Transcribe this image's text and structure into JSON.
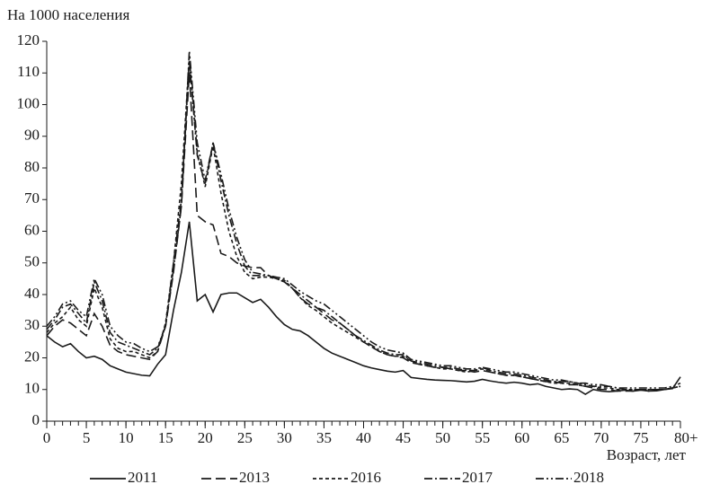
{
  "chart_data": {
    "type": "line",
    "y_label": "На 1000 населения",
    "x_label": "Возраст, лет",
    "x": [
      0,
      1,
      2,
      3,
      4,
      5,
      6,
      7,
      8,
      9,
      10,
      11,
      12,
      13,
      14,
      15,
      16,
      17,
      18,
      19,
      20,
      21,
      22,
      23,
      24,
      25,
      26,
      27,
      28,
      29,
      30,
      31,
      32,
      33,
      34,
      35,
      36,
      37,
      38,
      39,
      40,
      41,
      42,
      43,
      44,
      45,
      46,
      47,
      48,
      49,
      50,
      51,
      52,
      53,
      54,
      55,
      56,
      57,
      58,
      59,
      60,
      61,
      62,
      63,
      64,
      65,
      66,
      67,
      68,
      69,
      70,
      71,
      72,
      73,
      74,
      75,
      76,
      77,
      78,
      79,
      80
    ],
    "xlim": [
      0,
      80
    ],
    "xticks": [
      0,
      5,
      10,
      15,
      20,
      25,
      30,
      35,
      40,
      45,
      50,
      55,
      60,
      65,
      70,
      75,
      {
        "value": 80,
        "label": "80+"
      }
    ],
    "ylim": [
      0,
      120
    ],
    "yticks": [
      0,
      10,
      20,
      30,
      40,
      50,
      60,
      70,
      80,
      90,
      100,
      110,
      120
    ],
    "legend": "bottom",
    "series": [
      {
        "name": "2011",
        "color": "#1a1a1a",
        "style": "solid",
        "values": [
          27,
          25,
          23.5,
          24.5,
          22,
          20,
          20.5,
          19.5,
          17.5,
          16.5,
          15.5,
          15,
          14.5,
          14.3,
          18,
          21,
          35,
          47,
          63,
          38,
          40,
          34.5,
          40,
          40.5,
          40.5,
          39,
          37.5,
          38.5,
          36,
          33,
          30.5,
          29,
          28.5,
          27,
          25,
          23,
          21.5,
          20.5,
          19.5,
          18.5,
          17.5,
          16.8,
          16.3,
          15.8,
          15.5,
          16,
          13.8,
          13.5,
          13.2,
          13,
          12.9,
          12.8,
          12.6,
          12.4,
          12.6,
          13.2,
          12.7,
          12.3,
          12,
          12.3,
          12,
          11.5,
          11.8,
          11,
          10.5,
          10,
          10.2,
          10,
          8.5,
          10,
          9.5,
          9.3,
          9.5,
          9.8,
          9.5,
          9.8,
          9.5,
          9.6,
          10,
          10.3,
          14
        ]
      },
      {
        "name": "2013",
        "color": "#1a1a1a",
        "style": "dashed",
        "values": [
          27,
          30,
          32,
          31,
          29,
          27,
          34,
          30,
          24,
          22,
          21,
          20.5,
          20,
          19.5,
          22,
          30,
          47,
          68,
          110,
          65,
          63,
          62,
          53,
          52,
          50,
          49,
          48.5,
          48.5,
          46,
          45,
          44,
          42,
          39,
          37,
          36,
          34,
          32,
          31,
          29,
          27,
          25,
          23.5,
          22,
          21,
          20.5,
          20,
          18.5,
          18,
          17.5,
          17,
          17,
          16.5,
          16,
          16,
          15.5,
          16,
          15.5,
          15,
          14.5,
          14.5,
          14,
          13.5,
          13,
          12.5,
          12.5,
          12,
          11.5,
          11.5,
          11,
          10.5,
          10,
          10,
          9.5,
          9.5,
          9.5,
          10,
          9.5,
          10,
          10,
          10.5,
          11
        ]
      },
      {
        "name": "2016",
        "color": "#1a1a1a",
        "style": "dotted",
        "values": [
          28,
          31,
          33,
          36,
          32,
          30,
          42,
          36,
          26,
          23,
          22,
          22,
          21,
          20,
          22,
          31,
          50,
          75,
          115,
          85,
          74,
          87,
          72,
          60,
          52,
          47,
          45,
          45.5,
          45.5,
          45,
          44.5,
          42,
          39,
          36.5,
          35,
          33,
          31,
          29.5,
          28,
          26.5,
          25,
          23.5,
          22,
          21,
          20.5,
          20.5,
          19,
          18,
          17.5,
          17,
          16.5,
          16.5,
          16,
          15.5,
          16,
          16.5,
          15.5,
          15,
          14.5,
          14.5,
          14,
          13.5,
          13,
          12.5,
          12,
          12,
          12,
          11.5,
          11,
          11,
          10.5,
          10.5,
          10,
          10,
          10,
          10,
          10,
          10,
          10,
          10.5,
          11
        ]
      },
      {
        "name": "2017",
        "color": "#1a1a1a",
        "style": "dashdot",
        "values": [
          29,
          32,
          36,
          37,
          34,
          31,
          44,
          38,
          28,
          25,
          24,
          23,
          22,
          21,
          23,
          30,
          50,
          70,
          114,
          84,
          75,
          88,
          76,
          65,
          56,
          49,
          46,
          46,
          46,
          45,
          44,
          42,
          40,
          38,
          36,
          35,
          33,
          31,
          29,
          27,
          25.5,
          24,
          22.5,
          21.5,
          21,
          21,
          19,
          18.5,
          18,
          17.5,
          17,
          17,
          16.5,
          16,
          16,
          17,
          16,
          15.5,
          15,
          15,
          14.5,
          14,
          13.5,
          13,
          12.5,
          12.5,
          12.5,
          12,
          11.5,
          11,
          11,
          11,
          10.5,
          10,
          10,
          10,
          10,
          10,
          10,
          10.5,
          11
        ]
      },
      {
        "name": "2018",
        "color": "#1a1a1a",
        "style": "dashdotdot",
        "values": [
          30,
          33,
          37,
          38,
          35,
          33,
          45,
          40,
          30,
          27,
          25,
          24.5,
          23,
          22,
          23.5,
          30,
          48,
          68,
          117,
          88,
          76,
          88,
          78,
          67,
          58,
          51,
          47,
          46.5,
          46,
          45.5,
          45,
          43,
          41,
          39.5,
          38,
          37,
          35,
          33,
          31,
          29,
          27,
          25,
          23.5,
          22.5,
          22,
          21.5,
          19.5,
          19,
          18.5,
          18,
          17.5,
          17.5,
          17,
          16.5,
          16.5,
          17,
          16.5,
          16,
          15.5,
          15.5,
          15,
          14.5,
          14,
          13.5,
          13,
          13,
          12.5,
          12,
          12,
          11.5,
          11.5,
          11,
          10.5,
          10.5,
          10.5,
          10.5,
          10.5,
          10.5,
          10.5,
          11,
          12
        ]
      }
    ]
  }
}
